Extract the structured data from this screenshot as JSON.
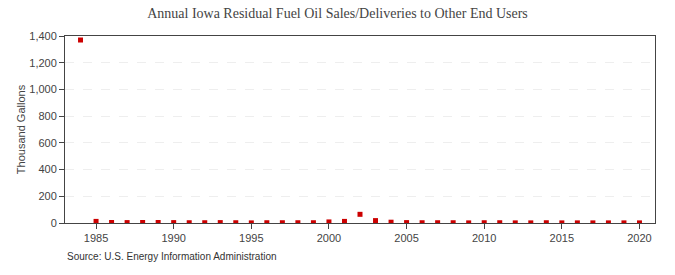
{
  "chart_data": {
    "type": "scatter",
    "title": "Annual Iowa Residual Fuel Oil Sales/Deliveries to Other End Users",
    "ylabel": "Thousand Gallons",
    "annotations": [
      "Source: U.S. Energy Information Administration"
    ],
    "color": "#cc0000",
    "marker": "square",
    "grid": "y",
    "xlim": [
      1983,
      2021
    ],
    "xticks": [
      1985,
      1990,
      1995,
      2000,
      2005,
      2010,
      2015,
      2020
    ],
    "ylim": [
      0,
      1400
    ],
    "yticks": [
      0,
      200,
      400,
      600,
      800,
      {
        "value": 1000,
        "label": "1,000"
      },
      {
        "value": 1200,
        "label": "1,200"
      },
      {
        "value": 1400,
        "label": "1,400"
      }
    ],
    "x": [
      1984,
      1985,
      1986,
      1987,
      1988,
      1989,
      1990,
      1991,
      1992,
      1993,
      1994,
      1995,
      1996,
      1997,
      1998,
      1999,
      2000,
      2001,
      2002,
      2003,
      2004,
      2005,
      2006,
      2007,
      2008,
      2009,
      2010,
      2011,
      2012,
      2013,
      2014,
      2015,
      2016,
      2017,
      2018,
      2019,
      2020
    ],
    "values": [
      1370,
      12,
      4,
      3,
      4,
      4,
      3,
      2,
      2,
      3,
      2,
      1,
      2,
      2,
      2,
      2,
      8,
      12,
      65,
      18,
      6,
      3,
      2,
      2,
      2,
      1,
      2,
      2,
      1,
      1,
      2,
      1,
      1,
      1,
      1,
      1,
      1
    ]
  }
}
